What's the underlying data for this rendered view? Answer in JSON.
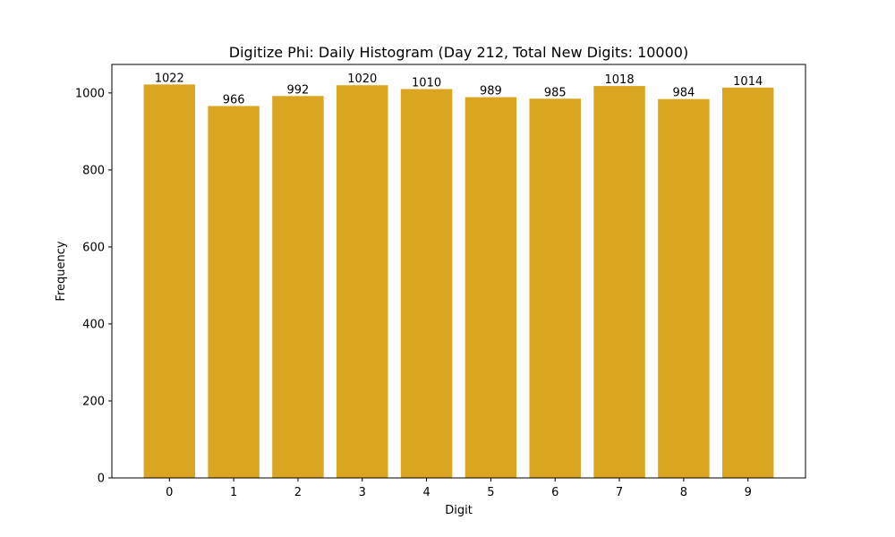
{
  "chart_data": {
    "type": "bar",
    "title": "Digitize Phi: Daily Histogram (Day 212, Total New Digits: 10000)",
    "xlabel": "Digit",
    "ylabel": "Frequency",
    "categories": [
      "0",
      "1",
      "2",
      "3",
      "4",
      "5",
      "6",
      "7",
      "8",
      "9"
    ],
    "values": [
      1022,
      966,
      992,
      1020,
      1010,
      989,
      985,
      1018,
      984,
      1014
    ],
    "ylim": [
      0,
      1074
    ],
    "yticks": [
      0,
      200,
      400,
      600,
      800,
      1000
    ],
    "bar_color": "#DAA520",
    "grid": false,
    "legend": null,
    "data_labels": true
  }
}
